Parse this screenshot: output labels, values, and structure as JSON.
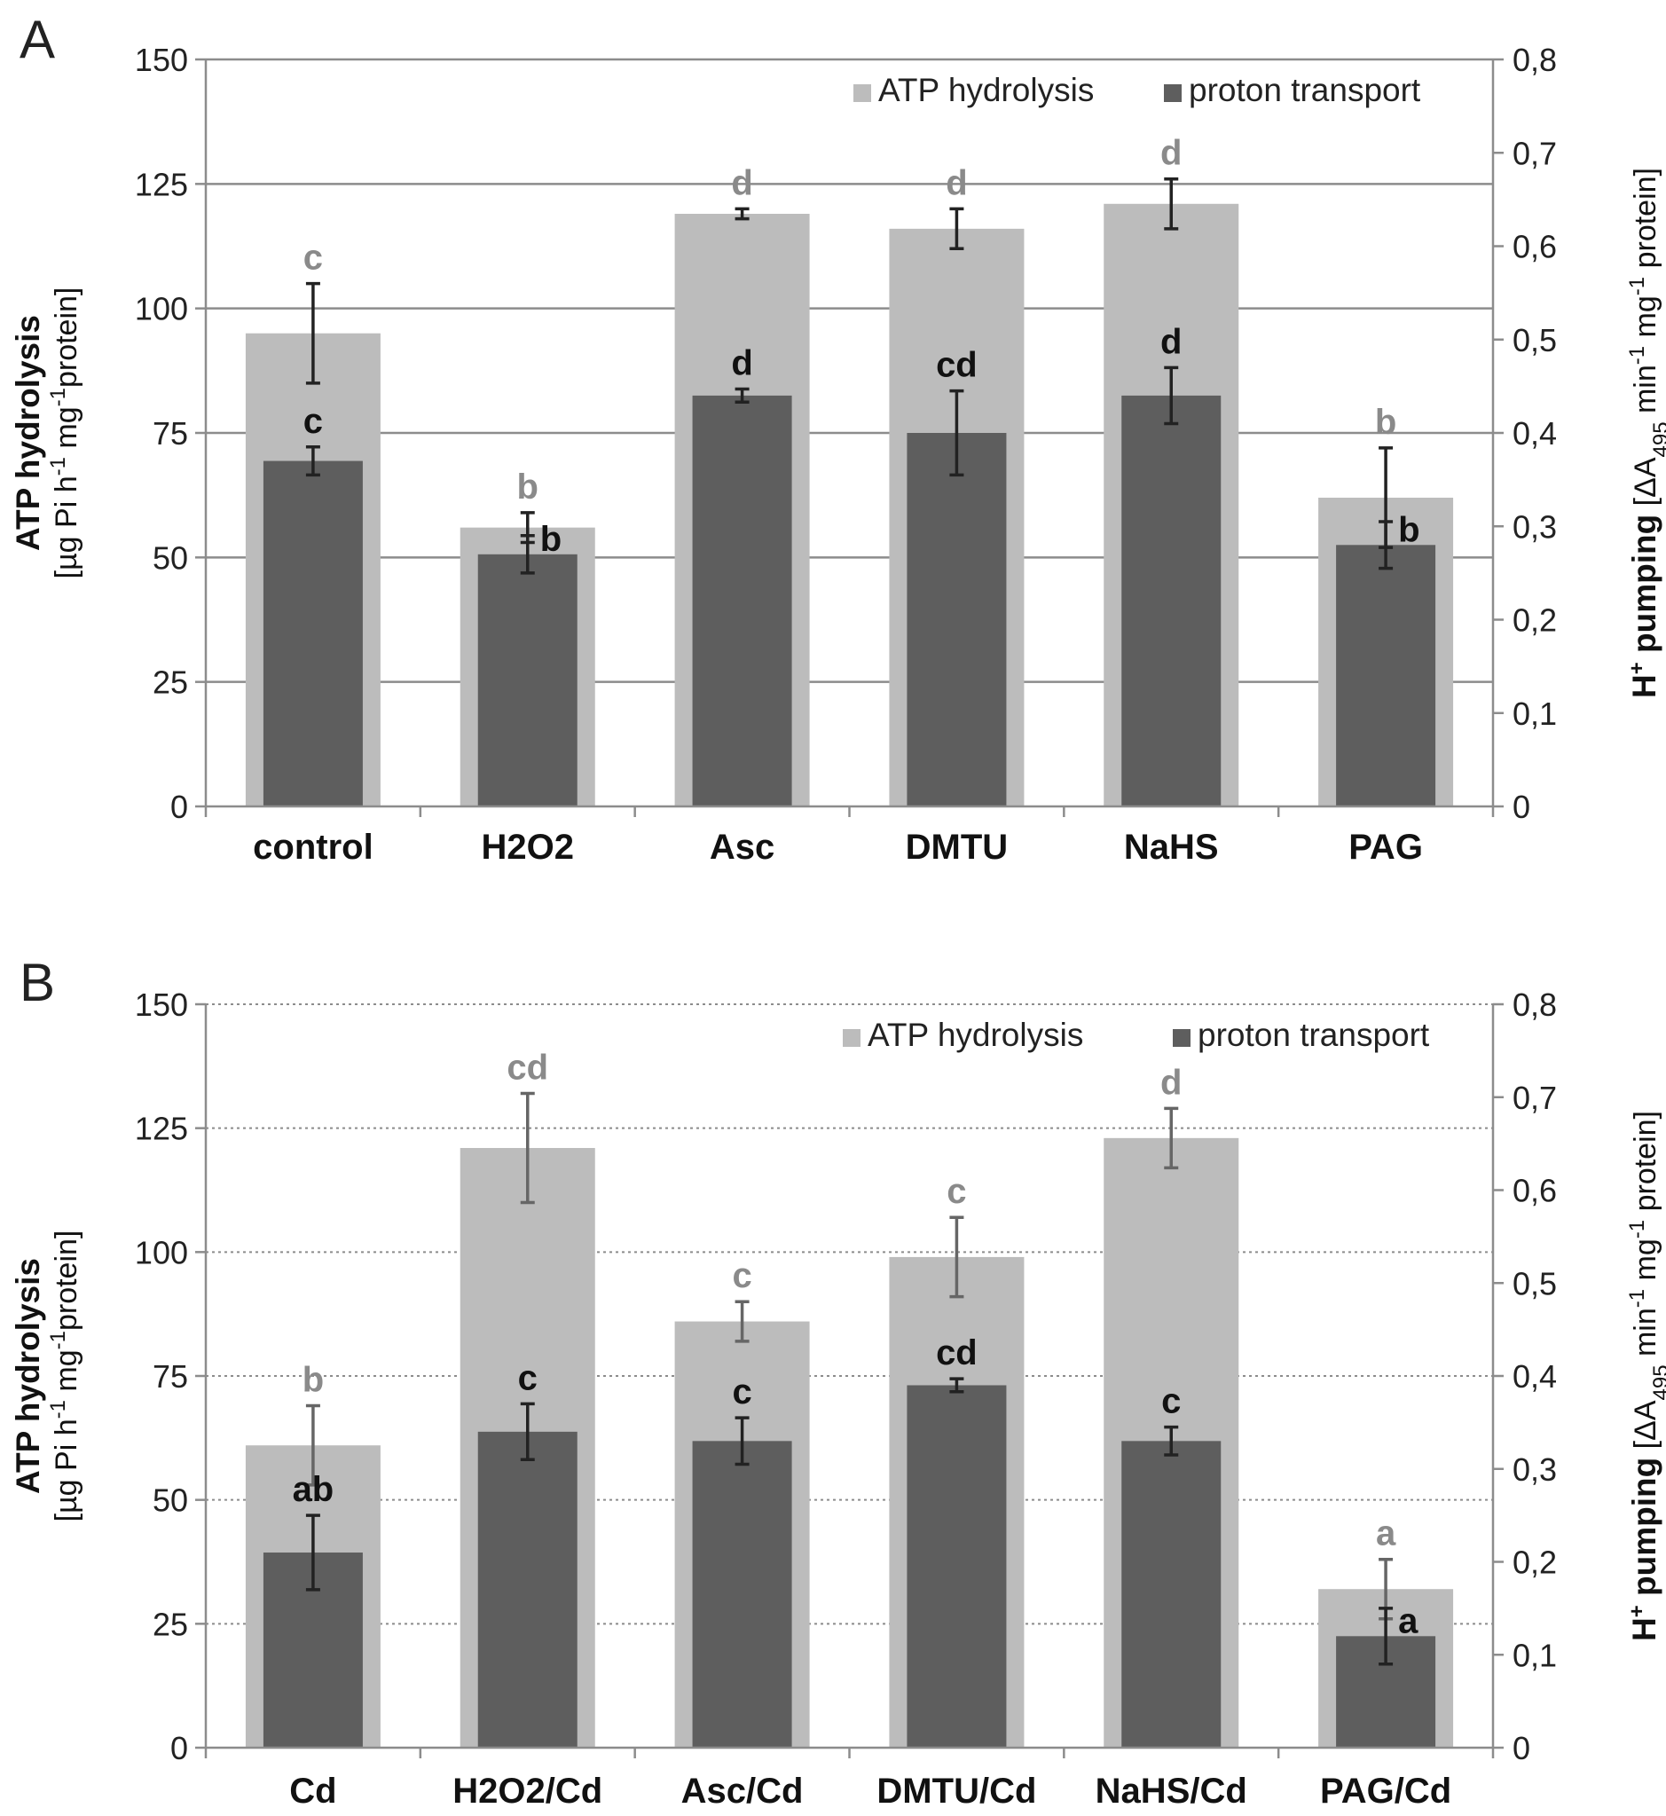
{
  "chart_data": [
    {
      "panel": "A",
      "type": "bar",
      "categories": [
        "control",
        "H2O2",
        "Asc",
        "DMTU",
        "NaHS",
        "PAG"
      ],
      "series": [
        {
          "name": "ATP hydrolysis",
          "axis": "left",
          "color": "#bcbcbc",
          "values": [
            95,
            56,
            119,
            116,
            121,
            62
          ],
          "errors": [
            10,
            3,
            1,
            4,
            5,
            10
          ],
          "letters": [
            "c",
            "b",
            "d",
            "d",
            "d",
            "b"
          ]
        },
        {
          "name": "proton transport",
          "axis": "right",
          "color": "#5e5e5e",
          "values": [
            0.37,
            0.27,
            0.44,
            0.4,
            0.44,
            0.28
          ],
          "errors": [
            0.015,
            0.02,
            0.007,
            0.045,
            0.03,
            0.025
          ],
          "letters": [
            "c",
            "b",
            "d",
            "cd",
            "d",
            "b"
          ]
        }
      ],
      "y_left": {
        "title": "ATP hydrolysis",
        "unit": [
          "[µg Pi h",
          "-1",
          " mg",
          "-1",
          "protein]"
        ],
        "ylim": [
          0,
          150
        ],
        "ticks": [
          "0",
          "25",
          "50",
          "75",
          "100",
          "125",
          "150"
        ]
      },
      "y_right": {
        "title": [
          "H",
          "+",
          " pumping"
        ],
        "unit": [
          " [ΔA",
          "495",
          " min",
          "-1",
          " mg",
          "-1",
          " protein]"
        ],
        "ylim": [
          0,
          0.8
        ],
        "ticks": [
          "0",
          "0,1",
          "0,2",
          "0,3",
          "0,4",
          "0,5",
          "0,6",
          "0,7",
          "0,8"
        ]
      },
      "grid": "solid",
      "legend": "top-right"
    },
    {
      "panel": "B",
      "type": "bar",
      "categories": [
        "Cd",
        "H2O2/Cd",
        "Asc/Cd",
        "DMTU/Cd",
        "NaHS/Cd",
        "PAG/Cd"
      ],
      "series": [
        {
          "name": "ATP hydrolysis",
          "axis": "left",
          "color": "#bcbcbc",
          "values": [
            61,
            121,
            86,
            99,
            123,
            32
          ],
          "errors": [
            8,
            11,
            4,
            8,
            6,
            6
          ],
          "letters": [
            "b",
            "cd",
            "c",
            "c",
            "d",
            "a"
          ]
        },
        {
          "name": "proton transport",
          "axis": "right",
          "color": "#5e5e5e",
          "values": [
            0.21,
            0.34,
            0.33,
            0.39,
            0.33,
            0.12
          ],
          "errors": [
            0.04,
            0.03,
            0.025,
            0.007,
            0.015,
            0.03
          ],
          "letters": [
            "ab",
            "c",
            "c",
            "cd",
            "c",
            "a"
          ]
        }
      ],
      "y_left": {
        "title": "ATP hydrolysis",
        "unit": [
          "[µg Pi h",
          "-1",
          " mg",
          "-1",
          "protein]"
        ],
        "ylim": [
          0,
          150
        ],
        "ticks": [
          "0",
          "25",
          "50",
          "75",
          "100",
          "125",
          "150"
        ]
      },
      "y_right": {
        "title": [
          "H",
          "+",
          " pumping"
        ],
        "unit": [
          " [ΔA",
          "495",
          " min",
          "-1",
          " mg",
          "-1",
          " protein]"
        ],
        "ylim": [
          0,
          0.8
        ],
        "ticks": [
          "0",
          "0,1",
          "0,2",
          "0,3",
          "0,4",
          "0,5",
          "0,6",
          "0,7",
          "0,8"
        ]
      },
      "grid": "dotted",
      "legend": "top-right"
    }
  ],
  "colors": {
    "atp_bar": "#bcbcbc",
    "proton_bar": "#5e5e5e",
    "atp_letter": "#8a8a8a",
    "proton_letter": "#111111",
    "axis": "#8c8c8c"
  }
}
